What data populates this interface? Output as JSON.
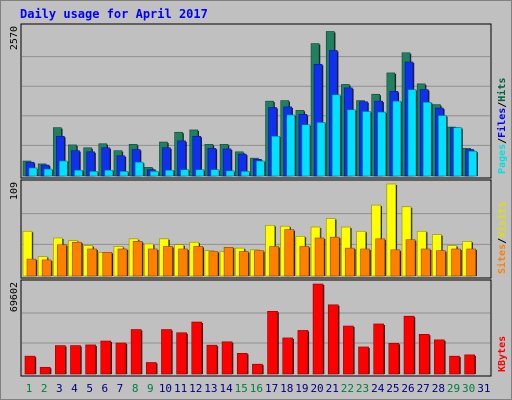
{
  "chart_data": [
    {
      "type": "bar",
      "title": "Daily usage for April 2017",
      "ymax_label": "2570",
      "ylim": [
        0,
        2570
      ],
      "grid": true,
      "right_labels": [
        "Pages",
        "/",
        "Files",
        "/",
        "Hits"
      ],
      "label_colors": {
        "Pages": "#00e0e0",
        "Files": "#0000ff",
        "Hits": "#006040",
        "sep": "#000000"
      },
      "categories": [
        "1",
        "2",
        "3",
        "4",
        "5",
        "6",
        "7",
        "8",
        "9",
        "10",
        "11",
        "12",
        "13",
        "14",
        "15",
        "16",
        "17",
        "18",
        "19",
        "20",
        "21",
        "22",
        "23",
        "24",
        "25",
        "26",
        "27",
        "28",
        "29",
        "30",
        "31"
      ],
      "weekend_days": [
        "1",
        "2",
        "8",
        "9",
        "15",
        "16",
        "22",
        "23",
        "29",
        "30"
      ],
      "series": [
        {
          "name": "Hits",
          "color": "#208060",
          "values": [
            260,
            210,
            840,
            540,
            490,
            560,
            440,
            550,
            150,
            590,
            760,
            800,
            550,
            550,
            420,
            310,
            1300,
            1310,
            1140,
            2300,
            2510,
            1590,
            1310,
            1420,
            1790,
            2140,
            1600,
            1240,
            850,
            480,
            0
          ]
        },
        {
          "name": "Files",
          "color": "#1030f0",
          "values": [
            240,
            190,
            690,
            440,
            420,
            490,
            350,
            460,
            110,
            490,
            610,
            690,
            480,
            470,
            380,
            290,
            1190,
            1200,
            1070,
            1940,
            2180,
            1530,
            1290,
            1300,
            1470,
            1980,
            1500,
            1180,
            840,
            460,
            0
          ]
        },
        {
          "name": "Pages",
          "color": "#00e0ff",
          "values": [
            140,
            120,
            260,
            100,
            80,
            100,
            80,
            240,
            80,
            100,
            110,
            110,
            110,
            90,
            80,
            260,
            690,
            1060,
            890,
            930,
            1410,
            1150,
            1120,
            1110,
            1300,
            1500,
            1280,
            1050,
            840,
            430,
            0
          ]
        }
      ]
    },
    {
      "type": "bar",
      "ymax_label": "109",
      "ylim": [
        0,
        109
      ],
      "grid": true,
      "right_labels": [
        "Sites",
        "/",
        "Visits"
      ],
      "label_colors": {
        "Sites": "#ff8000",
        "Visits": "#e0e000",
        "sep": "#000000"
      },
      "categories": [
        "1",
        "2",
        "3",
        "4",
        "5",
        "6",
        "7",
        "8",
        "9",
        "10",
        "11",
        "12",
        "13",
        "14",
        "15",
        "16",
        "17",
        "18",
        "19",
        "20",
        "21",
        "22",
        "23",
        "24",
        "25",
        "26",
        "27",
        "28",
        "29",
        "30",
        "31"
      ],
      "series": [
        {
          "name": "Visits",
          "color": "#ffff00",
          "values": [
            53,
            23,
            45,
            42,
            36,
            28,
            35,
            44,
            38,
            44,
            37,
            40,
            30,
            29,
            33,
            31,
            60,
            59,
            47,
            58,
            68,
            58,
            53,
            84,
            109,
            82,
            53,
            49,
            36,
            41,
            0
          ]
        },
        {
          "name": "Sites",
          "color": "#ff8000",
          "values": [
            20,
            19,
            37,
            40,
            32,
            28,
            32,
            41,
            32,
            35,
            32,
            35,
            29,
            34,
            29,
            30,
            35,
            55,
            35,
            45,
            46,
            33,
            32,
            44,
            31,
            43,
            32,
            30,
            32,
            32,
            0
          ]
        }
      ]
    },
    {
      "type": "bar",
      "ymax_label": "69602",
      "ylim": [
        0,
        69602
      ],
      "grid": true,
      "right_labels": [
        "KBytes"
      ],
      "label_colors": {
        "KBytes": "#ff0000"
      },
      "categories": [
        "1",
        "2",
        "3",
        "4",
        "5",
        "6",
        "7",
        "8",
        "9",
        "10",
        "11",
        "12",
        "13",
        "14",
        "15",
        "16",
        "17",
        "18",
        "19",
        "20",
        "21",
        "22",
        "23",
        "24",
        "25",
        "26",
        "27",
        "28",
        "29",
        "30",
        "31"
      ],
      "weekend_days": [
        "1",
        "2",
        "8",
        "9",
        "15",
        "16",
        "22",
        "23",
        "29",
        "30"
      ],
      "series": [
        {
          "name": "KBytes",
          "color": "#ff0000",
          "values": [
            13800,
            5200,
            22000,
            22000,
            22500,
            25500,
            24000,
            34400,
            8900,
            34400,
            31900,
            40200,
            22300,
            24900,
            16000,
            7600,
            48500,
            27900,
            33700,
            69602,
            53500,
            37100,
            20900,
            38700,
            23700,
            44700,
            30700,
            26400,
            13800,
            14800,
            0
          ]
        }
      ]
    }
  ]
}
